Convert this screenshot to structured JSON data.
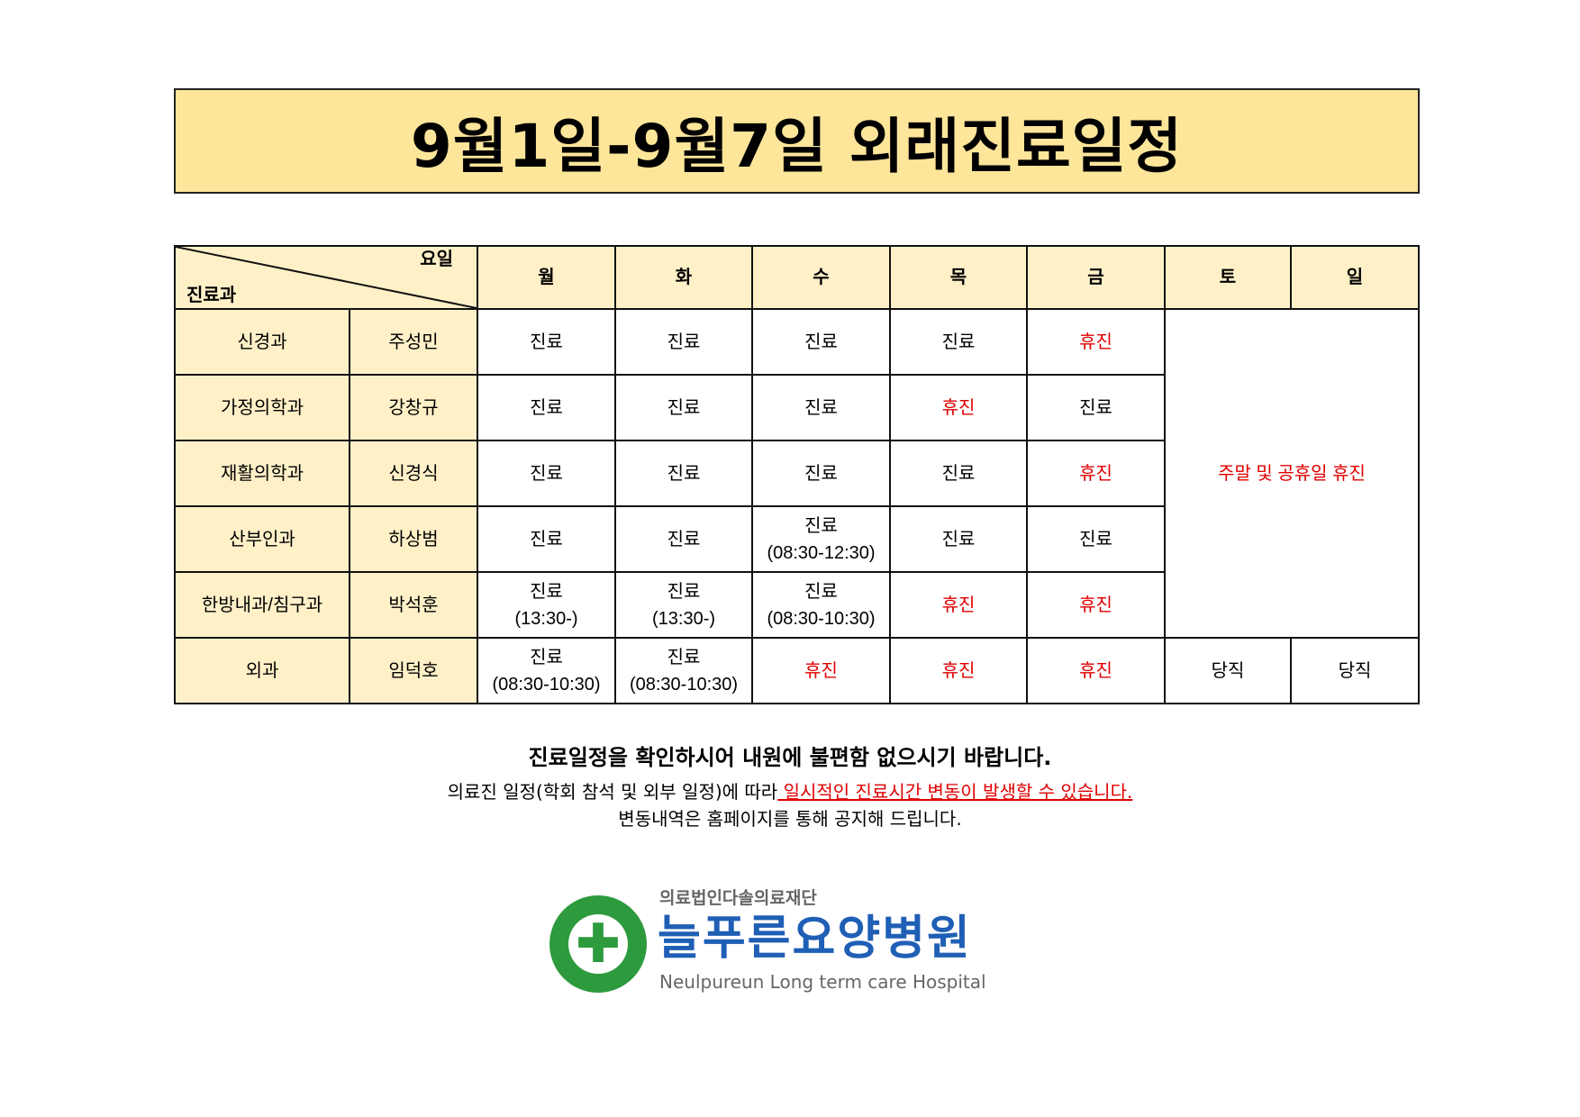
{
  "title": "9월1일-9월7일 외래진료일정",
  "table": {
    "corner_top": "요일",
    "corner_bottom": "진료과",
    "days": [
      "월",
      "화",
      "수",
      "목",
      "금",
      "토",
      "일"
    ],
    "rows": [
      {
        "dept": "신경과",
        "doctor": "주성민",
        "cells": [
          "진료",
          "진료",
          "진료",
          "진료",
          "휴진"
        ]
      },
      {
        "dept": "가정의학과",
        "doctor": "강창규",
        "cells": [
          "진료",
          "진료",
          "진료",
          "휴진",
          "진료"
        ]
      },
      {
        "dept": "재활의학과",
        "doctor": "신경식",
        "cells": [
          "진료",
          "진료",
          "진료",
          "진료",
          "휴진"
        ]
      },
      {
        "dept": "산부인과",
        "doctor": "하상범",
        "cells": [
          "진료",
          "진료",
          "진료\n(08:30-12:30)",
          "진료",
          "진료"
        ]
      },
      {
        "dept": "한방내과/침구과",
        "doctor": "박석훈",
        "cells": [
          "진료\n(13:30-)",
          "진료\n(13:30-)",
          "진료\n(08:30-10:30)",
          "휴진",
          "휴진"
        ]
      },
      {
        "dept": "외과",
        "doctor": "임덕호",
        "cells": [
          "진료\n(08:30-10:30)",
          "진료\n(08:30-10:30)",
          "휴진",
          "휴진",
          "휴진",
          "당직",
          "당직"
        ]
      }
    ],
    "weekend_note": "주말 및 공휴일 휴진"
  },
  "notes": {
    "line1": "진료일정을 확인하시어 내원에 불편함 없으시기 바랍니다.",
    "line2_black": "의료진 일정(학회 참석 및 외부 일정)에 따라",
    "line2_red": " 일시적인 진료시간 변동이 발생할 수 있습니다.",
    "line3": "변동내역은 홈페이지를 통해 공지해 드립니다."
  },
  "logo": {
    "org": "의료법인다솔의료재단",
    "name": "늘푸른요양병원",
    "english": "Neulpureun Long term care Hospital"
  },
  "colors": {
    "title_bg": "#fde59a",
    "header_bg": "#fff0c8",
    "closed": "#e00000",
    "logo_blue": "#1f5fb5",
    "logo_green": "#2e9a3e"
  }
}
